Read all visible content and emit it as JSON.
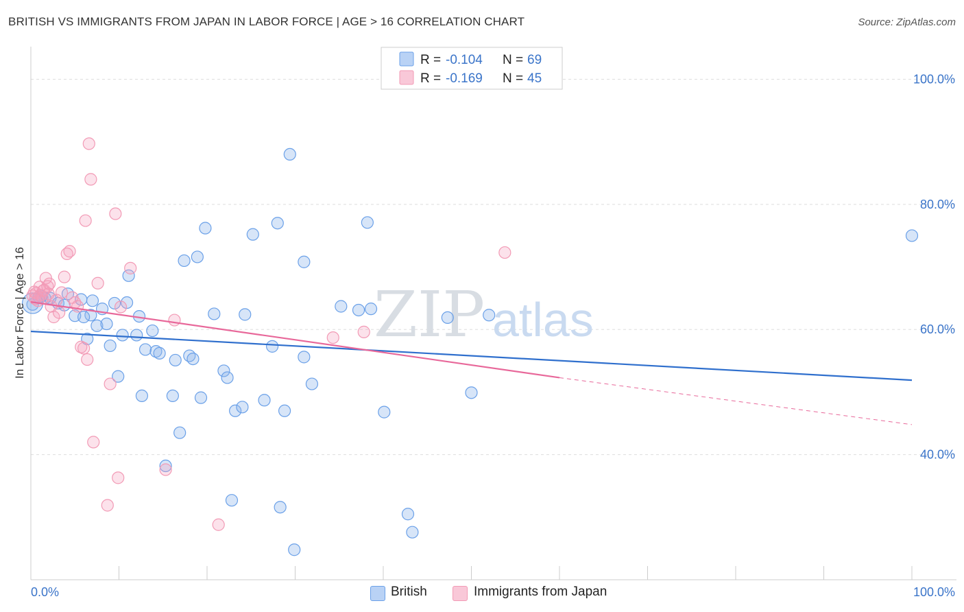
{
  "header": {
    "title": "BRITISH VS IMMIGRANTS FROM JAPAN IN LABOR FORCE | AGE > 16 CORRELATION CHART",
    "source": "Source: ZipAtlas.com"
  },
  "watermark": {
    "zip": "ZIP",
    "atlas": "atlas"
  },
  "chart_data": {
    "type": "scatter",
    "ylabel": "In Labor Force | Age > 16",
    "xlim": [
      0,
      100
    ],
    "ylim": [
      20,
      104
    ],
    "x_tick_labels": {
      "left": "0.0%",
      "right": "100.0%"
    },
    "y_ticks": [
      {
        "value": 100,
        "label": "100.0%"
      },
      {
        "value": 80,
        "label": "80.0%"
      },
      {
        "value": 60,
        "label": "60.0%"
      },
      {
        "value": 40,
        "label": "40.0%"
      }
    ],
    "grid": true,
    "legend_position": "top-center",
    "series": [
      {
        "name": "British",
        "color": "#6aa0e8",
        "line_color": "#2f6fcd",
        "r": "-0.104",
        "n": "69",
        "trend": {
          "x": [
            0,
            100
          ],
          "y": [
            59.7,
            51.9
          ]
        },
        "points": [
          [
            0.2,
            64.0
          ],
          [
            0.9,
            65.2
          ],
          [
            1.6,
            65.0
          ],
          [
            2.2,
            65.0
          ],
          [
            3.1,
            64.2
          ],
          [
            4.2,
            65.7
          ],
          [
            5.0,
            62.2
          ],
          [
            5.7,
            64.8
          ],
          [
            6.4,
            58.5
          ],
          [
            6.8,
            62.3
          ],
          [
            7.0,
            64.6
          ],
          [
            7.5,
            60.6
          ],
          [
            8.1,
            63.3
          ],
          [
            8.6,
            60.9
          ],
          [
            9.0,
            57.4
          ],
          [
            9.5,
            64.2
          ],
          [
            9.9,
            52.5
          ],
          [
            10.4,
            59.1
          ],
          [
            10.9,
            64.3
          ],
          [
            11.1,
            68.6
          ],
          [
            12.0,
            59.1
          ],
          [
            12.3,
            62.1
          ],
          [
            12.6,
            49.4
          ],
          [
            13.0,
            56.8
          ],
          [
            13.8,
            59.8
          ],
          [
            14.2,
            56.5
          ],
          [
            14.6,
            56.2
          ],
          [
            15.3,
            38.2
          ],
          [
            16.1,
            49.4
          ],
          [
            16.4,
            55.1
          ],
          [
            16.9,
            43.5
          ],
          [
            17.4,
            71.0
          ],
          [
            18.0,
            55.8
          ],
          [
            18.4,
            55.3
          ],
          [
            18.9,
            71.6
          ],
          [
            19.3,
            49.1
          ],
          [
            19.8,
            76.2
          ],
          [
            20.8,
            62.5
          ],
          [
            21.9,
            53.4
          ],
          [
            22.3,
            52.3
          ],
          [
            22.8,
            32.7
          ],
          [
            23.2,
            47.0
          ],
          [
            24.0,
            47.6
          ],
          [
            24.3,
            62.4
          ],
          [
            25.2,
            75.2
          ],
          [
            26.5,
            48.7
          ],
          [
            27.4,
            57.3
          ],
          [
            28.0,
            77.0
          ],
          [
            28.3,
            31.6
          ],
          [
            28.8,
            47.0
          ],
          [
            29.4,
            88.0
          ],
          [
            29.9,
            24.8
          ],
          [
            31.0,
            70.8
          ],
          [
            31.0,
            55.6
          ],
          [
            31.9,
            51.3
          ],
          [
            35.2,
            63.7
          ],
          [
            37.2,
            63.1
          ],
          [
            38.2,
            77.1
          ],
          [
            38.6,
            63.3
          ],
          [
            40.1,
            46.8
          ],
          [
            42.8,
            30.5
          ],
          [
            43.3,
            27.6
          ],
          [
            47.3,
            61.9
          ],
          [
            50.0,
            49.9
          ],
          [
            52.0,
            62.3
          ],
          [
            100.0,
            75.0
          ],
          [
            1.2,
            65.3
          ],
          [
            3.8,
            63.9
          ],
          [
            6.0,
            62.0
          ]
        ]
      },
      {
        "name": "Immigrants from Japan",
        "color": "#f29ab5",
        "line_color": "#e8689a",
        "r": "-0.169",
        "n": "45",
        "trend": {
          "x": [
            0,
            60
          ],
          "y": [
            64.4,
            52.3
          ]
        },
        "trend_dashed": {
          "x": [
            60,
            100
          ],
          "y": [
            52.3,
            44.8
          ]
        },
        "points": [
          [
            0.2,
            65.4
          ],
          [
            0.4,
            66.0
          ],
          [
            0.6,
            65.8
          ],
          [
            0.8,
            64.6
          ],
          [
            1.0,
            66.8
          ],
          [
            1.1,
            65.5
          ],
          [
            1.3,
            65.0
          ],
          [
            1.5,
            66.3
          ],
          [
            1.7,
            68.2
          ],
          [
            1.9,
            66.9
          ],
          [
            2.1,
            67.3
          ],
          [
            2.3,
            63.7
          ],
          [
            2.6,
            62.0
          ],
          [
            2.9,
            64.7
          ],
          [
            3.2,
            62.7
          ],
          [
            3.5,
            65.9
          ],
          [
            3.8,
            68.4
          ],
          [
            4.1,
            72.1
          ],
          [
            4.4,
            72.5
          ],
          [
            4.7,
            65.1
          ],
          [
            5.0,
            64.3
          ],
          [
            5.3,
            63.7
          ],
          [
            5.7,
            57.2
          ],
          [
            6.0,
            57.0
          ],
          [
            6.2,
            77.4
          ],
          [
            6.4,
            55.2
          ],
          [
            6.6,
            89.7
          ],
          [
            6.8,
            84.0
          ],
          [
            7.1,
            42.0
          ],
          [
            7.6,
            67.4
          ],
          [
            8.7,
            31.9
          ],
          [
            9.0,
            51.3
          ],
          [
            9.6,
            78.5
          ],
          [
            9.9,
            36.3
          ],
          [
            10.2,
            63.6
          ],
          [
            11.3,
            69.8
          ],
          [
            15.3,
            37.6
          ],
          [
            16.3,
            61.5
          ],
          [
            21.3,
            28.8
          ],
          [
            34.3,
            58.7
          ],
          [
            37.8,
            59.6
          ],
          [
            53.8,
            72.3
          ],
          [
            0.5,
            64.9
          ],
          [
            1.4,
            66.2
          ],
          [
            2.0,
            65.7
          ]
        ]
      }
    ]
  }
}
